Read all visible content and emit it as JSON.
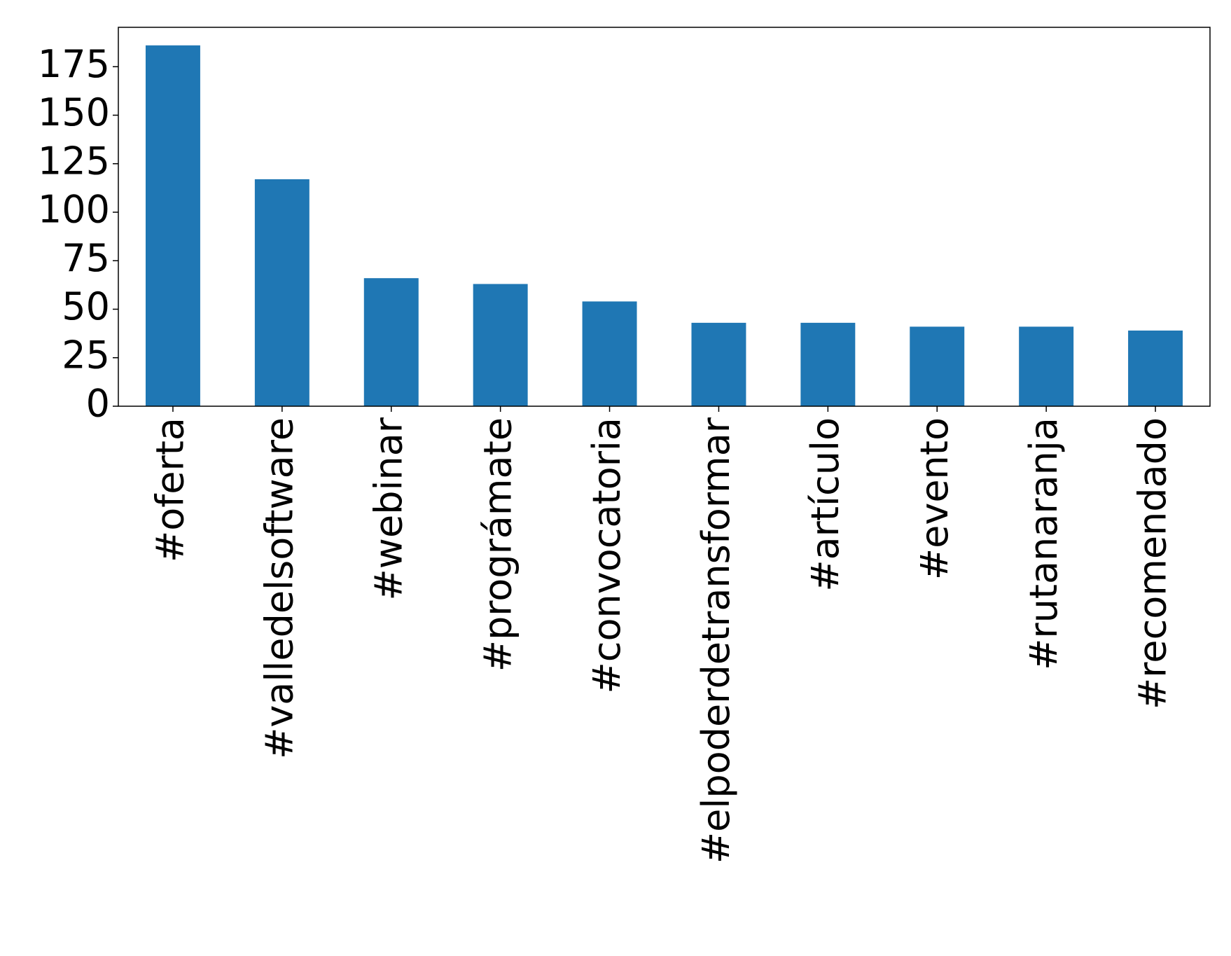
{
  "chart_data": {
    "type": "bar",
    "categories": [
      "#oferta",
      "#valledelsoftware",
      "#webinar",
      "#prográmate",
      "#convocatoria",
      "#elpoderdetransformar",
      "#artículo",
      "#evento",
      "#rutanaranja",
      "#recomendado"
    ],
    "values": [
      186,
      117,
      66,
      63,
      54,
      43,
      43,
      41,
      41,
      39
    ],
    "color": "#1f77b4",
    "ylim": [
      0,
      195.3
    ],
    "yticks": [
      0,
      25,
      50,
      75,
      100,
      125,
      150,
      175
    ],
    "grid": false
  }
}
